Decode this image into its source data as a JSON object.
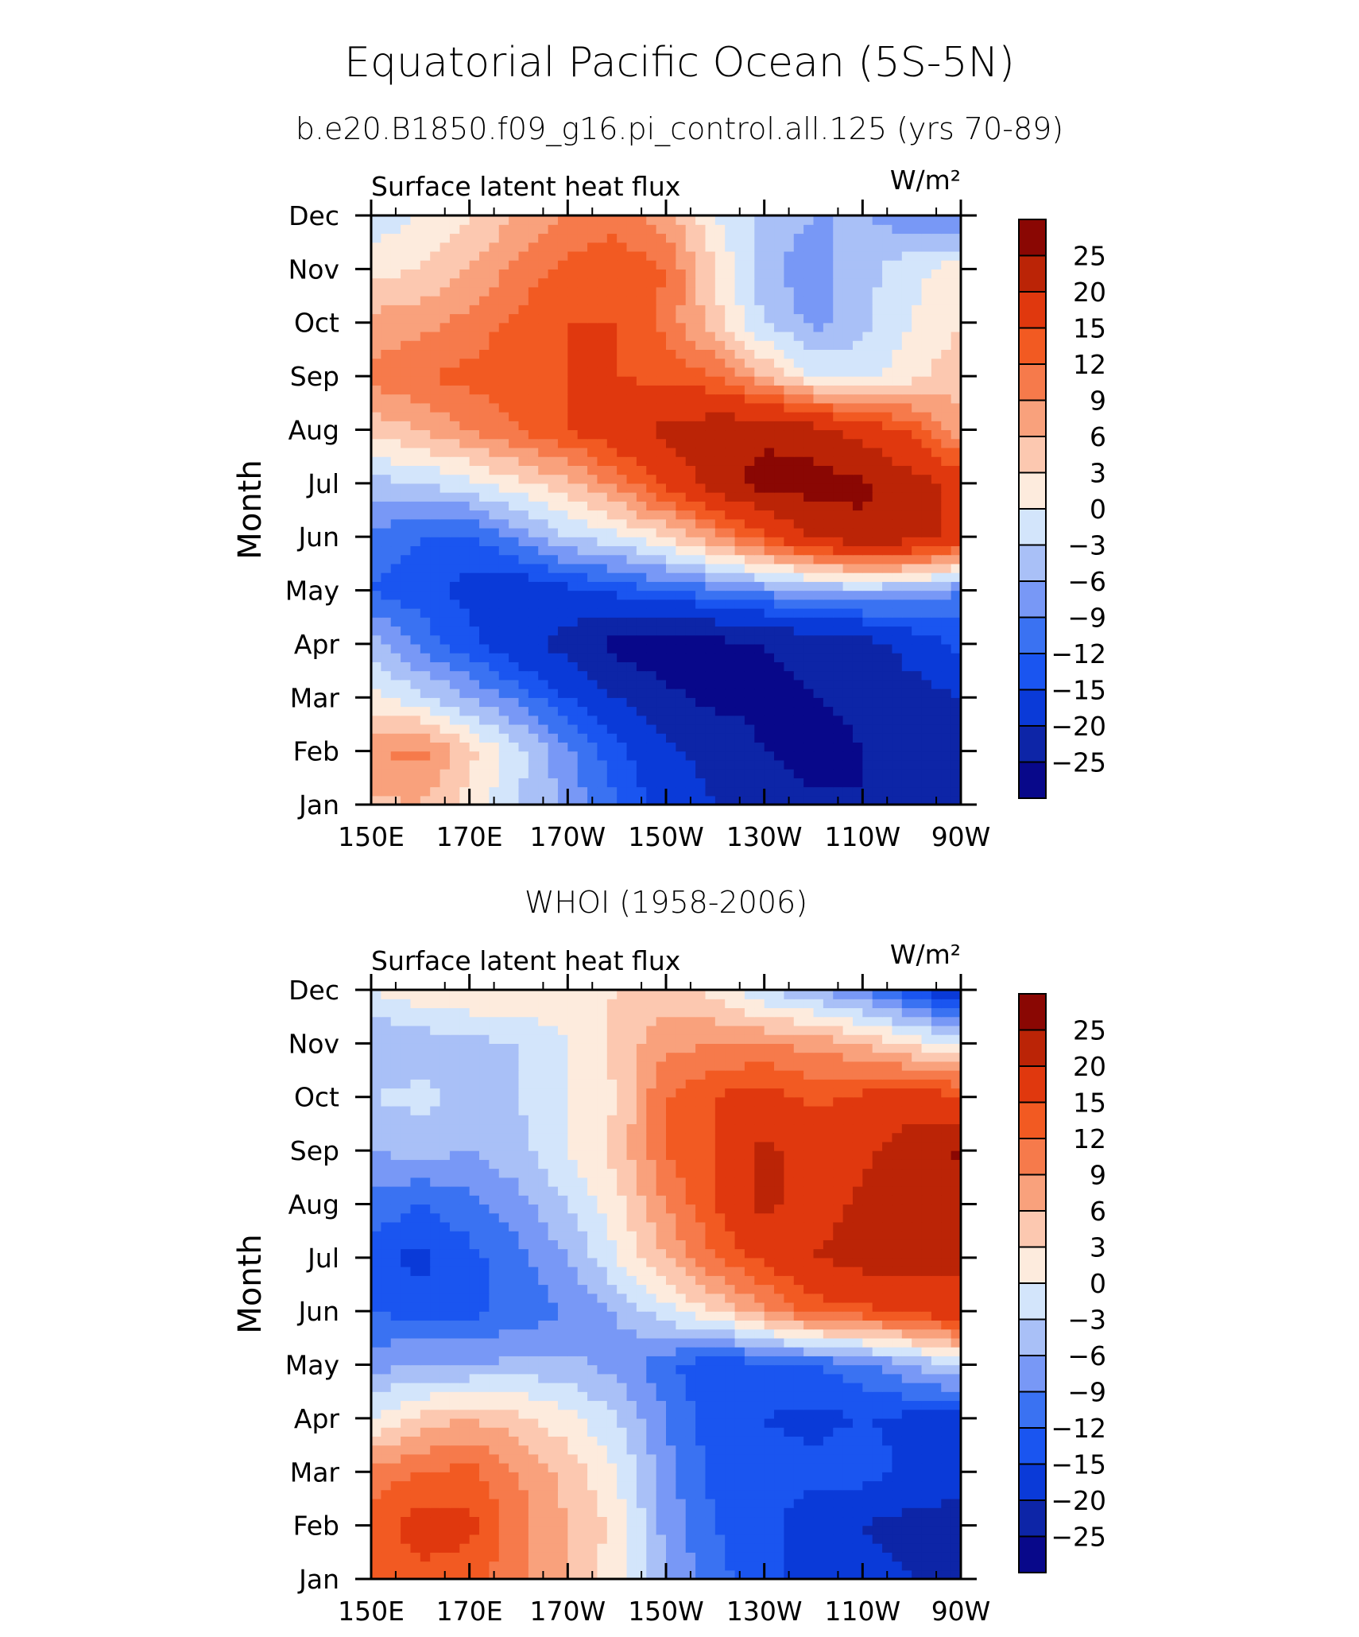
{
  "header": {
    "title": "Equatorial Pacific Ocean (5S-5N)",
    "subtitle": "b.e20.B1850.f09_g16.pi_control.all.125 (yrs 70-89)"
  },
  "colorbar": {
    "colors": [
      "#08088a",
      "#0d25a7",
      "#0a3ad8",
      "#1a55f0",
      "#3a72f2",
      "#7898f6",
      "#a9c0f7",
      "#d3e5fb",
      "#fdebdd",
      "#fcc8b0",
      "#f9a17c",
      "#f67a4b",
      "#f25a22",
      "#e0380e",
      "#bb2406",
      "#8a0703"
    ],
    "labels": [
      "−25",
      "−20",
      "−15",
      "−12",
      "−9",
      "−6",
      "−3",
      "0",
      "3",
      "6",
      "9",
      "12",
      "15",
      "20",
      "25"
    ]
  },
  "chart_data": [
    {
      "type": "heatmap",
      "name": "model",
      "panel_title": "",
      "title": "Surface latent heat flux",
      "units": "W/m²",
      "xlabel": "",
      "ylabel": "Month",
      "x_ticks": [
        "150E",
        "170E",
        "170W",
        "150W",
        "130W",
        "110W",
        "90W"
      ],
      "y_ticks": [
        "Jan",
        "Feb",
        "Mar",
        "Apr",
        "May",
        "Jun",
        "Jul",
        "Aug",
        "Sep",
        "Oct",
        "Nov",
        "Dec"
      ],
      "x_range_deg_east": [
        150,
        270
      ],
      "levels": [
        -25,
        -20,
        -15,
        -12,
        -9,
        -6,
        -3,
        0,
        3,
        6,
        9,
        12,
        15,
        20,
        25
      ],
      "lon_nodes": [
        150,
        160,
        170,
        180,
        190,
        200,
        210,
        220,
        230,
        240,
        250,
        260,
        270
      ],
      "z": [
        [
          5,
          6,
          2,
          -3,
          -7,
          -12,
          -16,
          -20,
          -22,
          -24,
          -25,
          -24,
          -22
        ],
        [
          9,
          10,
          4,
          -2,
          -8,
          -14,
          -19,
          -22,
          -25,
          -27,
          -25,
          -24,
          -22
        ],
        [
          1,
          -2,
          -6,
          -10,
          -15,
          -20,
          -24,
          -26,
          -26,
          -25,
          -24,
          -22,
          -20
        ],
        [
          -4,
          -10,
          -14,
          -18,
          -22,
          -27,
          -28,
          -27,
          -25,
          -24,
          -22,
          -18,
          -14
        ],
        [
          -12,
          -14,
          -16,
          -18,
          -16,
          -14,
          -12,
          -10,
          -8,
          -6,
          -5,
          -6,
          -9
        ],
        [
          -10,
          -12,
          -13,
          -8,
          -3,
          -1,
          3,
          8,
          14,
          20,
          24,
          22,
          18
        ],
        [
          -4,
          -3,
          -1,
          2,
          5,
          10,
          16,
          22,
          27,
          27,
          26,
          22,
          18
        ],
        [
          4,
          6,
          9,
          12,
          15,
          18,
          21,
          23,
          24,
          22,
          18,
          14,
          7
        ],
        [
          10,
          12,
          13,
          14,
          15,
          15,
          14,
          12,
          6,
          0,
          -1,
          2,
          5
        ],
        [
          7,
          8,
          10,
          13,
          15,
          15,
          11,
          4,
          -3,
          -7,
          -4,
          0,
          3
        ],
        [
          2,
          3,
          6,
          10,
          13,
          14,
          12,
          3,
          -5,
          -8,
          -4,
          -1,
          2
        ],
        [
          -2,
          0,
          3,
          6,
          9,
          11,
          7,
          0,
          -4,
          -6,
          -6,
          -8,
          -10
        ]
      ]
    },
    {
      "type": "heatmap",
      "name": "whoi",
      "panel_title": "WHOI (1958-2006)",
      "title": "Surface latent heat flux",
      "units": "W/m²",
      "xlabel": "",
      "ylabel": "Month",
      "x_ticks": [
        "150E",
        "170E",
        "170W",
        "150W",
        "130W",
        "110W",
        "90W"
      ],
      "y_ticks": [
        "Jan",
        "Feb",
        "Mar",
        "Apr",
        "May",
        "Jun",
        "Jul",
        "Aug",
        "Sep",
        "Oct",
        "Nov",
        "Dec"
      ],
      "x_range_deg_east": [
        150,
        270
      ],
      "levels": [
        -25,
        -20,
        -15,
        -12,
        -9,
        -6,
        -3,
        0,
        3,
        6,
        9,
        12,
        15,
        20,
        25
      ],
      "lon_nodes": [
        150,
        160,
        170,
        180,
        190,
        200,
        210,
        220,
        230,
        240,
        250,
        260,
        270
      ],
      "z": [
        [
          12,
          14,
          13,
          10,
          6,
          1,
          -6,
          -11,
          -14,
          -16,
          -18,
          -20,
          -22
        ],
        [
          13,
          17,
          16,
          10,
          6,
          2,
          -7,
          -12,
          -14,
          -17,
          -20,
          -22,
          -22
        ],
        [
          10,
          12,
          13,
          9,
          5,
          0,
          -8,
          -13,
          -14,
          -14,
          -13,
          -16,
          -18
        ],
        [
          0,
          4,
          6,
          4,
          1,
          -3,
          -9,
          -14,
          -15,
          -16,
          -15,
          -16,
          -17
        ],
        [
          -7,
          -6,
          -6,
          -5,
          -5,
          -7,
          -11,
          -15,
          -13,
          -12,
          -10,
          -6,
          -2
        ],
        [
          -12,
          -13,
          -13,
          -11,
          -9,
          -6,
          -1,
          3,
          8,
          13,
          14,
          16,
          18
        ],
        [
          -14,
          -16,
          -13,
          -10,
          -6,
          0,
          6,
          12,
          16,
          20,
          22,
          22,
          21
        ],
        [
          -10,
          -12,
          -10,
          -7,
          -3,
          2,
          9,
          15,
          21,
          18,
          21,
          23,
          22
        ],
        [
          -6,
          -5,
          -6,
          -4,
          0,
          4,
          12,
          15,
          21,
          18,
          19,
          22,
          26
        ],
        [
          -3,
          -2,
          -4,
          -3,
          0,
          3,
          12,
          15,
          17,
          14,
          16,
          18,
          15
        ],
        [
          -6,
          -5,
          -4,
          -3,
          0,
          4,
          8,
          9,
          9,
          8,
          6,
          2,
          0
        ],
        [
          0,
          2,
          3,
          3,
          2,
          3,
          4,
          2,
          -3,
          -6,
          -9,
          -14,
          -19
        ]
      ]
    }
  ]
}
